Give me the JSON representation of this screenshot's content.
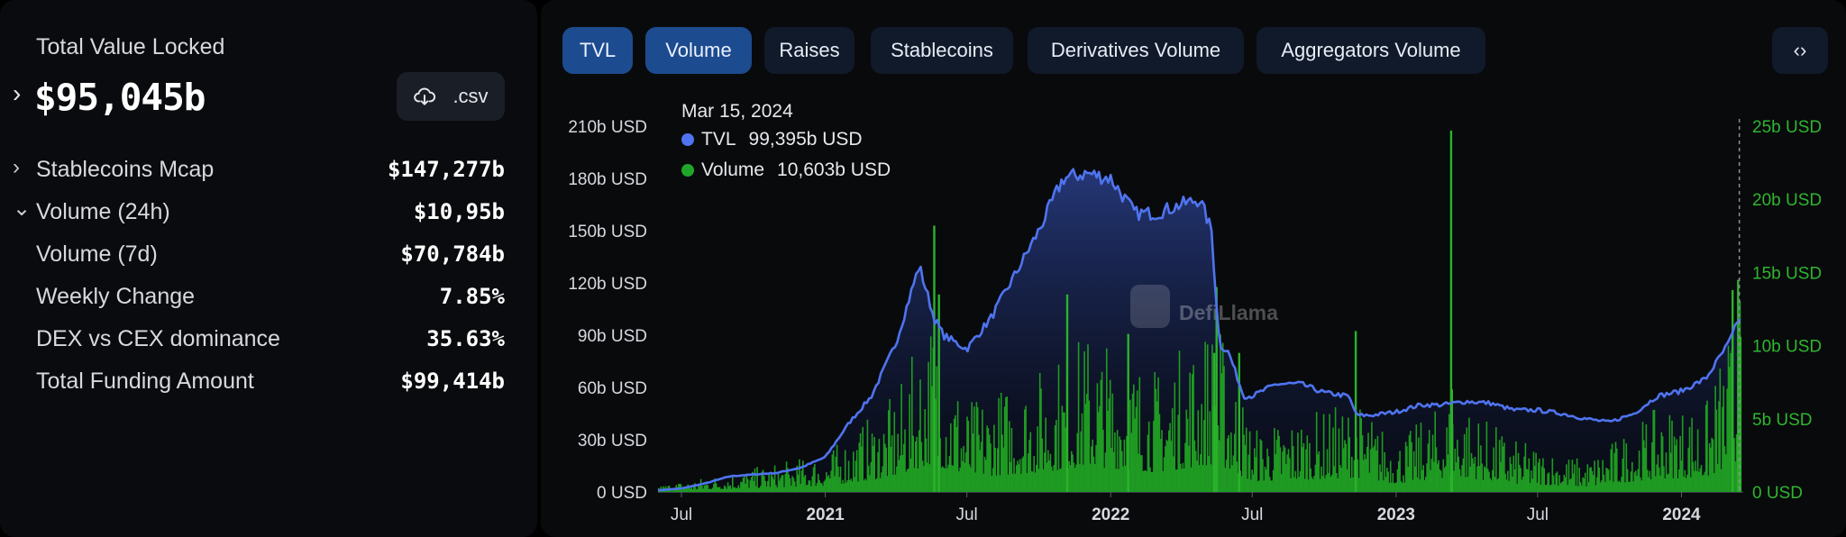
{
  "sidebar": {
    "tvl_label": "Total Value Locked",
    "tvl_value": "$95,045b",
    "csv_label": ".csv",
    "stats": [
      {
        "label": "Stablecoins Mcap",
        "value": "$147,277b",
        "chevron": "right"
      },
      {
        "label": "Volume (24h)",
        "value": "$10,95b",
        "chevron": "down"
      },
      {
        "label": "Volume (7d)",
        "value": "$70,784b",
        "chevron": ""
      },
      {
        "label": "Weekly Change",
        "value": "7.85%",
        "chevron": ""
      },
      {
        "label": "DEX vs CEX dominance",
        "value": "35.63%",
        "chevron": ""
      },
      {
        "label": "Total Funding Amount",
        "value": "$99,414b",
        "chevron": ""
      }
    ]
  },
  "tabs": [
    {
      "label": "TVL",
      "active": true
    },
    {
      "label": "Volume",
      "active": true
    },
    {
      "label": "Raises",
      "active": false
    },
    {
      "label": "Stablecoins",
      "active": false
    },
    {
      "label": "Derivatives Volume",
      "active": false
    },
    {
      "label": "Aggregators Volume",
      "active": false
    }
  ],
  "embed_icon": "code-brackets-icon",
  "watermark": "DefiLlama",
  "tooltip": {
    "date": "Mar 15, 2024",
    "rows": [
      {
        "name": "TVL",
        "value": "99,395b USD",
        "color": "#4f74f0"
      },
      {
        "name": "Volume",
        "value": "10,603b USD",
        "color": "#1fa62a"
      }
    ]
  },
  "colors": {
    "tvl_line": "#4f74f0",
    "volume_bar": "#1f9a22",
    "left_axis_text": "#d6d9de",
    "right_axis_text": "#2fb52f"
  },
  "chart_data": {
    "type": "area",
    "x_ticks": [
      "Jul",
      "2021",
      "Jul",
      "2022",
      "Jul",
      "2023",
      "Jul",
      "2024"
    ],
    "x_tick_dates": [
      "2020-07-01",
      "2021-01-01",
      "2021-07-01",
      "2022-01-01",
      "2022-07-01",
      "2023-01-01",
      "2023-07-01",
      "2024-01-01"
    ],
    "x_range": [
      "2020-06-01",
      "2024-03-20"
    ],
    "left_axis": {
      "ticks": [
        "0 USD",
        "30b USD",
        "60b USD",
        "90b USD",
        "120b USD",
        "150b USD",
        "180b USD",
        "210b USD"
      ],
      "range": [
        0,
        210
      ],
      "unit": "b USD"
    },
    "right_axis": {
      "ticks": [
        "0 USD",
        "5b USD",
        "10b USD",
        "15b USD",
        "20b USD",
        "25b USD"
      ],
      "range": [
        0,
        25
      ],
      "unit": "b USD"
    },
    "series": [
      {
        "name": "TVL",
        "axis": "left",
        "points": [
          [
            "2020-06-01",
            1
          ],
          [
            "2020-07-01",
            2
          ],
          [
            "2020-08-01",
            5
          ],
          [
            "2020-09-01",
            9
          ],
          [
            "2020-10-01",
            10
          ],
          [
            "2020-11-01",
            11
          ],
          [
            "2020-12-01",
            14
          ],
          [
            "2021-01-01",
            20
          ],
          [
            "2021-02-01",
            40
          ],
          [
            "2021-03-01",
            55
          ],
          [
            "2021-04-01",
            85
          ],
          [
            "2021-05-01",
            130
          ],
          [
            "2021-05-20",
            100
          ],
          [
            "2021-06-01",
            90
          ],
          [
            "2021-07-01",
            82
          ],
          [
            "2021-08-01",
            100
          ],
          [
            "2021-09-01",
            125
          ],
          [
            "2021-10-01",
            150
          ],
          [
            "2021-11-01",
            180
          ],
          [
            "2021-12-01",
            183
          ],
          [
            "2022-01-01",
            180
          ],
          [
            "2022-02-01",
            160
          ],
          [
            "2022-03-01",
            160
          ],
          [
            "2022-04-01",
            165
          ],
          [
            "2022-04-25",
            168
          ],
          [
            "2022-05-10",
            150
          ],
          [
            "2022-05-20",
            85
          ],
          [
            "2022-06-01",
            80
          ],
          [
            "2022-06-20",
            55
          ],
          [
            "2022-07-01",
            55
          ],
          [
            "2022-08-01",
            62
          ],
          [
            "2022-09-01",
            62
          ],
          [
            "2022-10-01",
            57
          ],
          [
            "2022-11-01",
            55
          ],
          [
            "2022-11-12",
            44
          ],
          [
            "2022-12-01",
            44
          ],
          [
            "2023-01-01",
            46
          ],
          [
            "2023-02-01",
            50
          ],
          [
            "2023-03-01",
            50
          ],
          [
            "2023-04-01",
            52
          ],
          [
            "2023-05-01",
            51
          ],
          [
            "2023-06-01",
            47
          ],
          [
            "2023-07-01",
            47
          ],
          [
            "2023-08-01",
            45
          ],
          [
            "2023-09-01",
            42
          ],
          [
            "2023-10-01",
            40
          ],
          [
            "2023-11-01",
            45
          ],
          [
            "2023-12-01",
            55
          ],
          [
            "2024-01-01",
            58
          ],
          [
            "2024-02-01",
            65
          ],
          [
            "2024-03-01",
            85
          ],
          [
            "2024-03-15",
            99.395
          ]
        ]
      },
      {
        "name": "Volume",
        "axis": "right",
        "base_levels": [
          [
            "2020-06-01",
            0.2
          ],
          [
            "2020-09-01",
            0.6
          ],
          [
            "2021-01-01",
            1.2
          ],
          [
            "2021-04-01",
            3.0
          ],
          [
            "2021-05-15",
            5.5
          ],
          [
            "2021-07-01",
            2.8
          ],
          [
            "2021-10-01",
            3.8
          ],
          [
            "2021-12-01",
            5.0
          ],
          [
            "2022-03-01",
            3.8
          ],
          [
            "2022-05-15",
            5.5
          ],
          [
            "2022-07-01",
            2.0
          ],
          [
            "2022-11-10",
            2.8
          ],
          [
            "2023-01-01",
            1.6
          ],
          [
            "2023-03-15",
            3.0
          ],
          [
            "2023-06-01",
            1.6
          ],
          [
            "2023-09-01",
            1.0
          ],
          [
            "2023-12-01",
            2.6
          ],
          [
            "2024-02-01",
            2.8
          ],
          [
            "2024-03-15",
            6.0
          ]
        ],
        "spikes": [
          [
            "2021-05-19",
            18.2
          ],
          [
            "2021-05-25",
            13.5
          ],
          [
            "2021-11-05",
            13.5
          ],
          [
            "2022-01-22",
            10.8
          ],
          [
            "2022-05-12",
            9.5
          ],
          [
            "2022-05-15",
            14.0
          ],
          [
            "2022-06-13",
            9.5
          ],
          [
            "2022-11-09",
            11.0
          ],
          [
            "2023-03-11",
            24.7
          ],
          [
            "2023-03-12",
            7.0
          ],
          [
            "2024-03-05",
            13.8
          ],
          [
            "2024-03-12",
            14.5
          ],
          [
            "2024-03-15",
            10.603
          ]
        ]
      }
    ]
  }
}
